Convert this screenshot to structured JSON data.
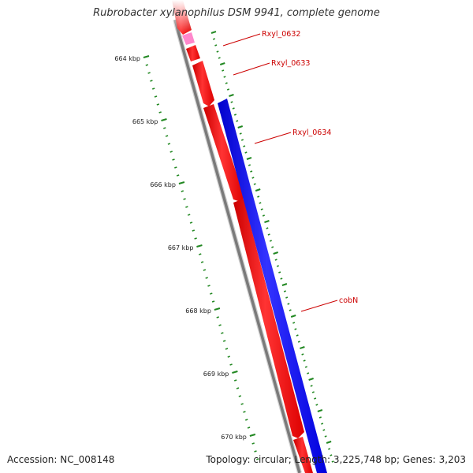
{
  "title": "Rubrobacter xylanophilus DSM 9941, complete genome",
  "footer": {
    "accession": "Accession: NC_008148",
    "topology": "Topology: circular; Length: 3,225,748 bp; Genes: 3,203"
  },
  "colors": {
    "backbone": "#808080",
    "forward_gene": "#ff0000",
    "reverse_gene": "#0000ff",
    "rna_gene": "#ff88cc",
    "ticks": "#228822",
    "label": "#cc0000"
  },
  "scale": {
    "tick_labels": [
      "664 kbp",
      "665 kbp",
      "666 kbp",
      "667 kbp",
      "668 kbp",
      "669 kbp",
      "670 kbp"
    ]
  },
  "gene_labels": [
    {
      "name": "Rxyl_0632"
    },
    {
      "name": "Rxyl_0633"
    },
    {
      "name": "Rxyl_0634"
    },
    {
      "name": "cobN"
    }
  ]
}
